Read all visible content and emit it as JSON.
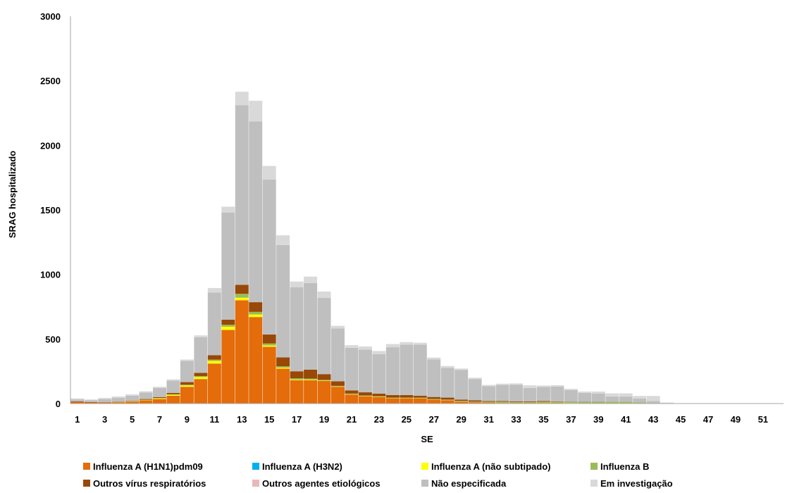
{
  "chart_data": {
    "type": "bar",
    "stacked": true,
    "xlabel": "SE",
    "ylabel": "SRAG hospitalizado",
    "ylim": [
      0,
      3000
    ],
    "yticks": [
      0,
      500,
      1000,
      1500,
      2000,
      2500,
      3000
    ],
    "categories": [
      1,
      2,
      3,
      4,
      5,
      6,
      7,
      8,
      9,
      10,
      11,
      12,
      13,
      14,
      15,
      16,
      17,
      18,
      19,
      20,
      21,
      22,
      23,
      24,
      25,
      26,
      27,
      28,
      29,
      30,
      31,
      32,
      33,
      34,
      35,
      36,
      37,
      38,
      39,
      40,
      41,
      42,
      43,
      44,
      45,
      46,
      47,
      48,
      49,
      50,
      51,
      52
    ],
    "xtick_labels": [
      "1",
      "3",
      "5",
      "7",
      "9",
      "11",
      "13",
      "15",
      "17",
      "19",
      "21",
      "23",
      "25",
      "27",
      "29",
      "31",
      "33",
      "35",
      "37",
      "39",
      "41",
      "43",
      "45",
      "47",
      "49",
      "51"
    ],
    "legend_position": "bottom",
    "series": [
      {
        "name": "Influenza A (H1N1)pdm09",
        "color": "#E46C0A",
        "values": [
          12,
          8,
          8,
          10,
          15,
          25,
          35,
          60,
          130,
          190,
          310,
          570,
          800,
          670,
          440,
          270,
          180,
          180,
          175,
          130,
          70,
          55,
          50,
          40,
          40,
          40,
          30,
          25,
          15,
          10,
          8,
          5,
          5,
          5,
          5,
          5,
          3,
          2,
          2,
          2,
          2,
          2,
          1,
          0,
          0,
          0,
          0,
          0,
          0,
          0,
          0,
          0
        ]
      },
      {
        "name": "Influenza A (H3N2)",
        "color": "#00B0F0",
        "values": [
          0,
          0,
          0,
          0,
          0,
          0,
          0,
          0,
          0,
          0,
          0,
          0,
          0,
          0,
          0,
          0,
          0,
          0,
          0,
          0,
          0,
          0,
          0,
          0,
          0,
          0,
          0,
          0,
          0,
          0,
          0,
          0,
          0,
          0,
          0,
          0,
          0,
          0,
          0,
          0,
          0,
          0,
          0,
          0,
          0,
          0,
          0,
          0,
          0,
          0,
          0,
          0
        ]
      },
      {
        "name": "Influenza A (não subtipado)",
        "color": "#FFFF00",
        "values": [
          0,
          0,
          0,
          1,
          2,
          3,
          5,
          8,
          10,
          15,
          20,
          25,
          20,
          20,
          10,
          8,
          5,
          5,
          3,
          2,
          2,
          2,
          2,
          1,
          1,
          1,
          1,
          1,
          1,
          0,
          1,
          1,
          1,
          1,
          1,
          1,
          1,
          1,
          1,
          1,
          1,
          1,
          0,
          0,
          0,
          0,
          0,
          0,
          0,
          0,
          0,
          0
        ]
      },
      {
        "name": "Influenza B",
        "color": "#9BBB59",
        "values": [
          0,
          0,
          0,
          1,
          1,
          2,
          3,
          4,
          6,
          8,
          10,
          15,
          30,
          20,
          15,
          10,
          10,
          8,
          5,
          5,
          5,
          5,
          5,
          5,
          5,
          5,
          5,
          5,
          5,
          5,
          5,
          8,
          5,
          5,
          8,
          8,
          8,
          8,
          8,
          10,
          10,
          5,
          2,
          0,
          0,
          0,
          0,
          0,
          0,
          0,
          0,
          0
        ]
      },
      {
        "name": "Outros vírus respiratórios",
        "color": "#984807",
        "values": [
          5,
          3,
          2,
          3,
          3,
          5,
          7,
          10,
          20,
          25,
          35,
          40,
          70,
          75,
          70,
          70,
          55,
          70,
          45,
          35,
          25,
          25,
          20,
          20,
          20,
          15,
          15,
          15,
          10,
          10,
          5,
          5,
          5,
          5,
          5,
          3,
          2,
          2,
          2,
          1,
          1,
          1,
          1,
          0,
          0,
          0,
          0,
          0,
          0,
          0,
          0,
          0
        ]
      },
      {
        "name": "Outros agentes etiológicos",
        "color": "#E6B9B8",
        "values": [
          0,
          0,
          0,
          0,
          0,
          0,
          0,
          0,
          0,
          0,
          0,
          0,
          0,
          0,
          0,
          0,
          0,
          0,
          0,
          0,
          0,
          0,
          0,
          0,
          0,
          0,
          0,
          0,
          0,
          0,
          0,
          0,
          0,
          0,
          0,
          0,
          0,
          0,
          0,
          0,
          0,
          0,
          0,
          0,
          0,
          0,
          0,
          0,
          0,
          0,
          0,
          0
        ]
      },
      {
        "name": "Não especificada",
        "color": "#BFBFBF",
        "values": [
          15,
          15,
          25,
          30,
          40,
          50,
          70,
          95,
          165,
          275,
          485,
          830,
          1390,
          1400,
          1200,
          870,
          650,
          670,
          590,
          410,
          330,
          330,
          305,
          370,
          390,
          395,
          290,
          230,
          230,
          165,
          115,
          125,
          130,
          105,
          110,
          115,
          90,
          70,
          65,
          40,
          40,
          30,
          15,
          0,
          0,
          0,
          0,
          0,
          0,
          0,
          0,
          0
        ]
      },
      {
        "name": "Em investigação",
        "color": "#D9D9D9",
        "values": [
          8,
          6,
          8,
          10,
          10,
          10,
          10,
          10,
          10,
          15,
          35,
          45,
          105,
          160,
          105,
          75,
          45,
          50,
          50,
          20,
          20,
          25,
          25,
          25,
          20,
          15,
          15,
          15,
          10,
          10,
          10,
          10,
          10,
          20,
          10,
          10,
          10,
          10,
          15,
          25,
          25,
          20,
          40,
          8,
          0,
          0,
          0,
          0,
          0,
          0,
          0,
          0
        ]
      }
    ]
  }
}
